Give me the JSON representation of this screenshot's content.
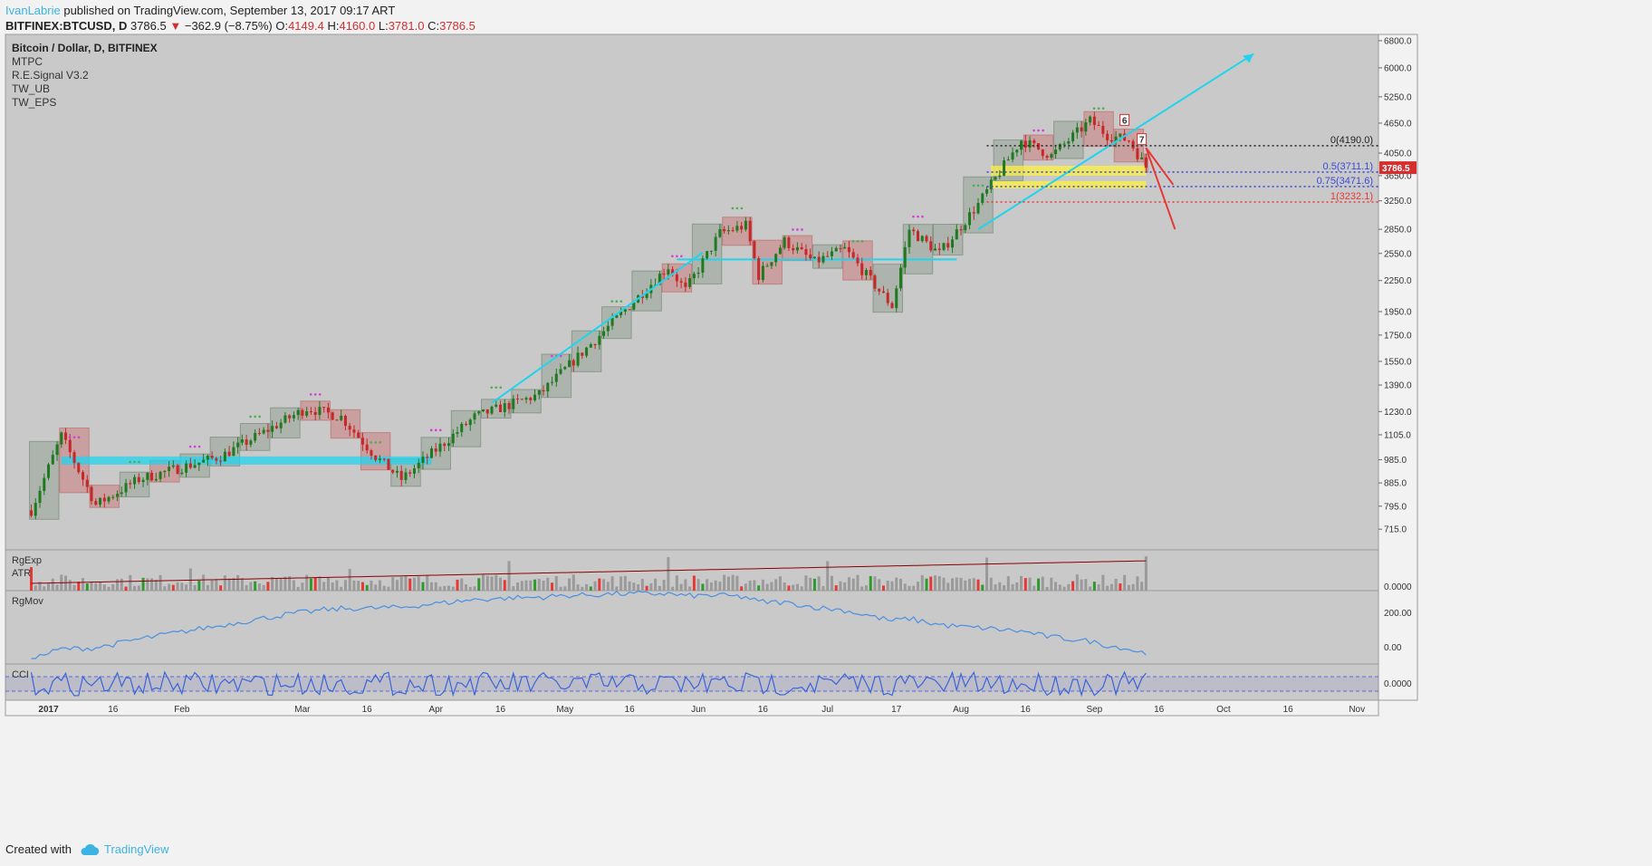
{
  "header": {
    "author": "IvanLabrie",
    "published_text": "published on TradingView.com, September 13, 2017 09:17 ART",
    "symbol": "BITFINEX:BTCUSD, D",
    "last": "3786.5",
    "change_icon": "down-triangle",
    "change": "−362.9 (−8.75%)",
    "open_label": "O:",
    "open": "4149.4",
    "high_label": "H:",
    "high": "4160.0",
    "low_label": "L:",
    "low": "3781.0",
    "close_label": "C:",
    "close": "3786.5"
  },
  "footer": {
    "created_with": "Created with",
    "brand": "TradingView"
  },
  "colors": {
    "background": "#c9c9c9",
    "up": "#1f7a1f",
    "down": "#c62828",
    "cyan": "#22d3ee",
    "fib0": "#222222",
    "fib05": "#3a4bd8",
    "fib1": "#e53935",
    "price_tag": "#d32f2f",
    "mov_line": "#4a90e2"
  },
  "chart_data": {
    "type": "candlestick",
    "title": "Bitcoin / Dollar, D, BITFINEX",
    "indicators": [
      "MTPC",
      "R.E.Signal V3.2",
      "TW_UB",
      "TW_EPS"
    ],
    "price_axis": {
      "ticks": [
        "6800.0",
        "6000.0",
        "5250.0",
        "4650.0",
        "4050.0",
        "3650.0",
        "3250.0",
        "2850.0",
        "2550.0",
        "2250.0",
        "1950.0",
        "1750.0",
        "1550.0",
        "1390.0",
        "1230.0",
        "1105.0",
        "985.0",
        "885.0",
        "795.0",
        "715.0"
      ],
      "scale": "log"
    },
    "time_axis": {
      "labels": [
        "2017",
        "16",
        "Feb",
        "Mar",
        "16",
        "Apr",
        "16",
        "May",
        "16",
        "Jun",
        "16",
        "Jul",
        "17",
        "Aug",
        "16",
        "Sep",
        "16",
        "Oct",
        "16",
        "Nov"
      ]
    },
    "last_price": 3786.5,
    "fib_levels": [
      {
        "label": "0(4190.0)",
        "value": 4190.0
      },
      {
        "label": "0.5(3711.1)",
        "value": 3711.1
      },
      {
        "label": "0.75(3471.6)",
        "value": 3471.6
      },
      {
        "label": "1(3232.1)",
        "value": 3232.1
      }
    ],
    "markers": [
      "6",
      "7"
    ],
    "anchors": [
      {
        "date": "2016-12-28",
        "price": 780
      },
      {
        "date": "2017-01-04",
        "price": 1100
      },
      {
        "date": "2017-01-12",
        "price": 800
      },
      {
        "date": "2017-01-22",
        "price": 900
      },
      {
        "date": "2017-02-10",
        "price": 1000
      },
      {
        "date": "2017-03-02",
        "price": 1250
      },
      {
        "date": "2017-03-10",
        "price": 1200
      },
      {
        "date": "2017-03-18",
        "price": 1000
      },
      {
        "date": "2017-03-24",
        "price": 900
      },
      {
        "date": "2017-04-10",
        "price": 1200
      },
      {
        "date": "2017-04-25",
        "price": 1330
      },
      {
        "date": "2017-05-10",
        "price": 1780
      },
      {
        "date": "2017-05-25",
        "price": 2400
      },
      {
        "date": "2017-05-29",
        "price": 2150
      },
      {
        "date": "2017-06-06",
        "price": 2800
      },
      {
        "date": "2017-06-12",
        "price": 2900
      },
      {
        "date": "2017-06-15",
        "price": 2300
      },
      {
        "date": "2017-06-21",
        "price": 2700
      },
      {
        "date": "2017-06-28",
        "price": 2450
      },
      {
        "date": "2017-07-05",
        "price": 2600
      },
      {
        "date": "2017-07-16",
        "price": 2000
      },
      {
        "date": "2017-07-20",
        "price": 2850
      },
      {
        "date": "2017-07-27",
        "price": 2550
      },
      {
        "date": "2017-08-05",
        "price": 3200
      },
      {
        "date": "2017-08-15",
        "price": 4300
      },
      {
        "date": "2017-08-22",
        "price": 4000
      },
      {
        "date": "2017-08-31",
        "price": 4700
      },
      {
        "date": "2017-09-04",
        "price": 4400
      },
      {
        "date": "2017-09-09",
        "price": 4300
      },
      {
        "date": "2017-09-13",
        "price": 3786.5
      }
    ],
    "sub_panels": [
      {
        "labels": [
          "RgExp",
          "ATR"
        ],
        "ticks": [
          "0.0000"
        ]
      },
      {
        "labels": [
          "RgMov"
        ],
        "ticks": [
          "200.00",
          "0.00"
        ]
      },
      {
        "labels": [
          "CCI"
        ],
        "ticks": [
          "0.0000"
        ]
      }
    ]
  }
}
